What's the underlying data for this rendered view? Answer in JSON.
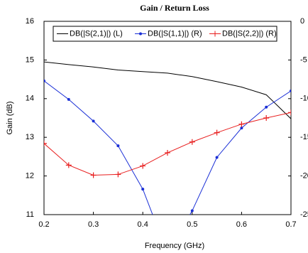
{
  "chart_data": {
    "type": "line",
    "title": "Gain / Return Loss",
    "x_label": "Frequency (GHz)",
    "y_label": "Gain (dB)",
    "x": [
      0.2,
      0.25,
      0.3,
      0.35,
      0.4,
      0.45,
      0.5,
      0.55,
      0.6,
      0.65,
      0.7
    ],
    "series": [
      {
        "name": "DB(|S(2,1)|) (L)",
        "color": "#000000",
        "marker": "none",
        "values": [
          14.95,
          14.88,
          14.82,
          14.74,
          14.7,
          14.66,
          14.57,
          14.44,
          14.3,
          14.1,
          13.48
        ]
      },
      {
        "name": "DB(|S(1,1)|) (R)",
        "color": "#1a2fd6",
        "marker": "dot",
        "axis": "y2",
        "values": [
          -7.7,
          -10.1,
          -12.9,
          -16.1,
          -21.7,
          -30,
          -24.5,
          -17.6,
          -13.8,
          -11.1,
          -9.0
        ]
      },
      {
        "name": "DB(|S(2,2)|) (R)",
        "color": "#e81e1e",
        "marker": "plus",
        "axis": "y2",
        "values": [
          -15.8,
          -18.6,
          -19.9,
          -19.8,
          -18.7,
          -17.0,
          -15.6,
          -14.4,
          -13.3,
          -12.5,
          -11.8
        ]
      }
    ],
    "xlim": [
      0.2,
      0.7
    ],
    "xticks": [
      0.2,
      0.3,
      0.4,
      0.5,
      0.6,
      0.7
    ],
    "ylim": [
      11,
      16
    ],
    "yticks": [
      11,
      12,
      13,
      14,
      15,
      16
    ],
    "y2lim": [
      -25,
      0
    ],
    "y2ticks": [
      0,
      -5,
      -10,
      -15,
      -20,
      -25
    ],
    "grid": false
  }
}
